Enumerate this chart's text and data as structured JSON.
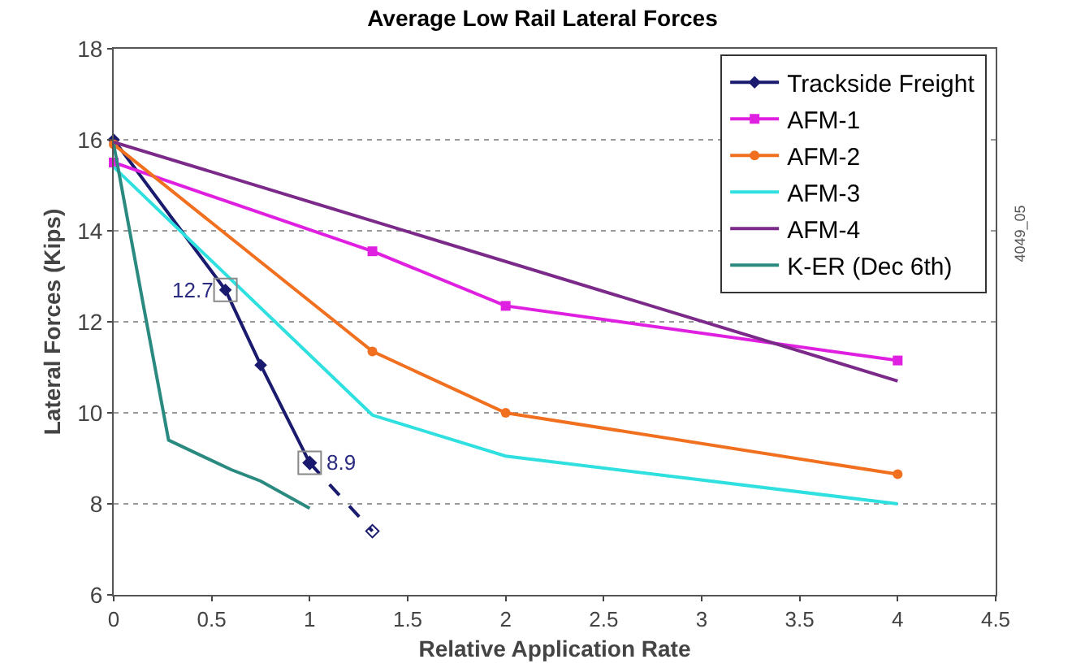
{
  "chart_data": {
    "type": "line",
    "title": "Average Low Rail Lateral Forces",
    "xlabel": "Relative Application Rate",
    "ylabel": "Lateral Forces (Kips)",
    "xlim": [
      0,
      4.5
    ],
    "xticks": [
      0,
      0.5,
      1,
      1.5,
      2,
      2.5,
      3,
      3.5,
      4,
      4.5
    ],
    "ylim": [
      6,
      18
    ],
    "yticks": [
      6,
      8,
      10,
      12,
      14,
      16,
      18
    ],
    "grid": "y",
    "legend": "top right",
    "series": [
      {
        "name": "Trackside Freight",
        "color": "#1a1a6e",
        "marker": "diamond",
        "line_style": "solid",
        "x": [
          0,
          0.57,
          0.75,
          1
        ],
        "values": [
          16,
          12.7,
          11.05,
          8.9
        ]
      },
      {
        "color": "#1a1a6e",
        "marker": "diamond",
        "line_style": "dashed",
        "x": [
          1,
          1.32
        ],
        "values": [
          8.9,
          7.4
        ]
      },
      {
        "name": "AFM-1",
        "color": "#e020e0",
        "marker": "square",
        "line_style": "solid",
        "x": [
          0,
          1.32,
          2,
          4
        ],
        "values": [
          15.5,
          13.55,
          12.35,
          11.15
        ]
      },
      {
        "name": "AFM-2",
        "color": "#f07020",
        "marker": "circle",
        "line_style": "solid",
        "x": [
          0,
          1.32,
          2,
          4
        ],
        "values": [
          15.9,
          11.35,
          10,
          8.65
        ]
      },
      {
        "name": "AFM-3",
        "color": "#30e0e0",
        "marker": "none",
        "line_style": "solid",
        "x": [
          0,
          1.32,
          2,
          4
        ],
        "values": [
          15.4,
          9.95,
          9.05,
          8
        ]
      },
      {
        "name": "AFM-4",
        "color": "#7b2a8a",
        "marker": "none",
        "line_style": "solid",
        "x": [
          0,
          4
        ],
        "values": [
          15.95,
          10.7
        ]
      },
      {
        "name": "K-ER (Dec 6th)",
        "color": "#2a8a80",
        "marker": "none",
        "line_style": "solid",
        "x": [
          0,
          0.15,
          0.28,
          0.6,
          0.75,
          1
        ],
        "values": [
          15.9,
          12.4,
          9.4,
          8.75,
          8.5,
          7.9
        ]
      }
    ],
    "annotations": [
      {
        "text": "12.7",
        "x": 0.57,
        "y": 12.7
      },
      {
        "text": "8.9",
        "x": 1,
        "y": 8.9
      },
      "4049_05"
    ]
  }
}
